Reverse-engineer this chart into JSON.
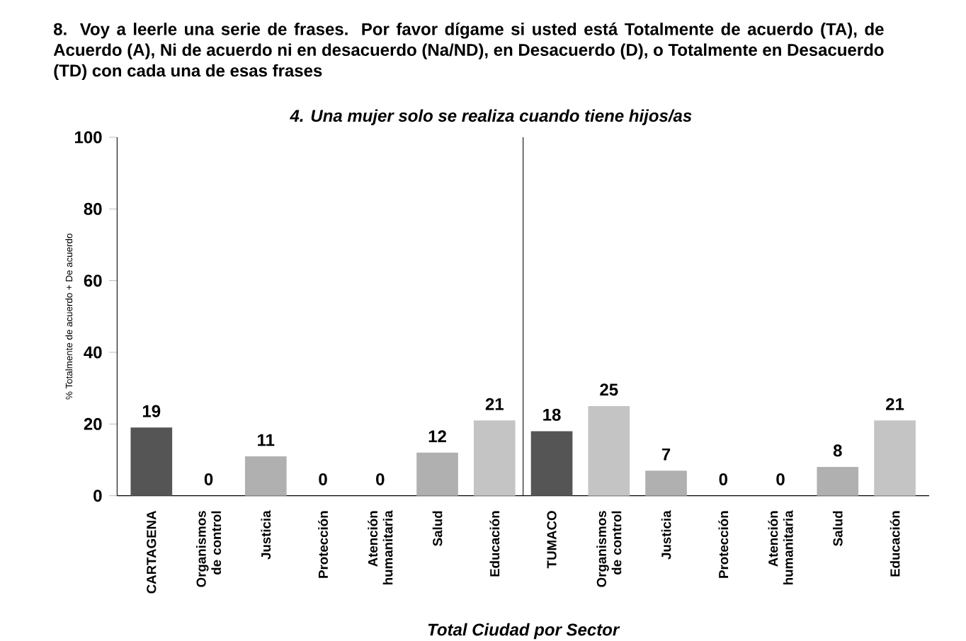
{
  "chart_data": {
    "type": "bar",
    "title": "8. Voy a leerle una serie de frases. Por favor dígame si usted está Totalmente de acuerdo (TA), de Acuerdo (A), Ni de acuerdo ni en desacuerdo (Na/ND), en Desacuerdo (D), o Totalmente en Desacuerdo (TD) con cada una de esas frases",
    "subtitle": "4. Una mujer solo se realiza cuando tiene hijos/as",
    "xlabel": "Total Ciudad por Sector",
    "ylabel": "% Totalmente de acuerdo + De acuerdo",
    "categories": [
      "CARTAGENA",
      "Organismos de control",
      "Justicia",
      "Protección",
      "Atención humanitaria",
      "Salud",
      "Educación",
      "TUMACO",
      "Organismos de control",
      "Justicia",
      "Protección",
      "Atención humanitaria",
      "Salud",
      "Educación"
    ],
    "values": [
      19,
      0,
      11,
      0,
      0,
      12,
      21,
      18,
      25,
      7,
      0,
      0,
      8,
      21
    ],
    "colors": [
      "#555555",
      "#b0b0b0",
      "#b0b0b0",
      "#b0b0b0",
      "#b0b0b0",
      "#b0b0b0",
      "#c4c4c4",
      "#555555",
      "#c4c4c4",
      "#b0b0b0",
      "#b0b0b0",
      "#b0b0b0",
      "#b0b0b0",
      "#c4c4c4"
    ],
    "ylim": [
      0,
      100
    ],
    "yticks": [
      0,
      20,
      40,
      60,
      80,
      100
    ],
    "data_labels": true,
    "grid": false
  }
}
